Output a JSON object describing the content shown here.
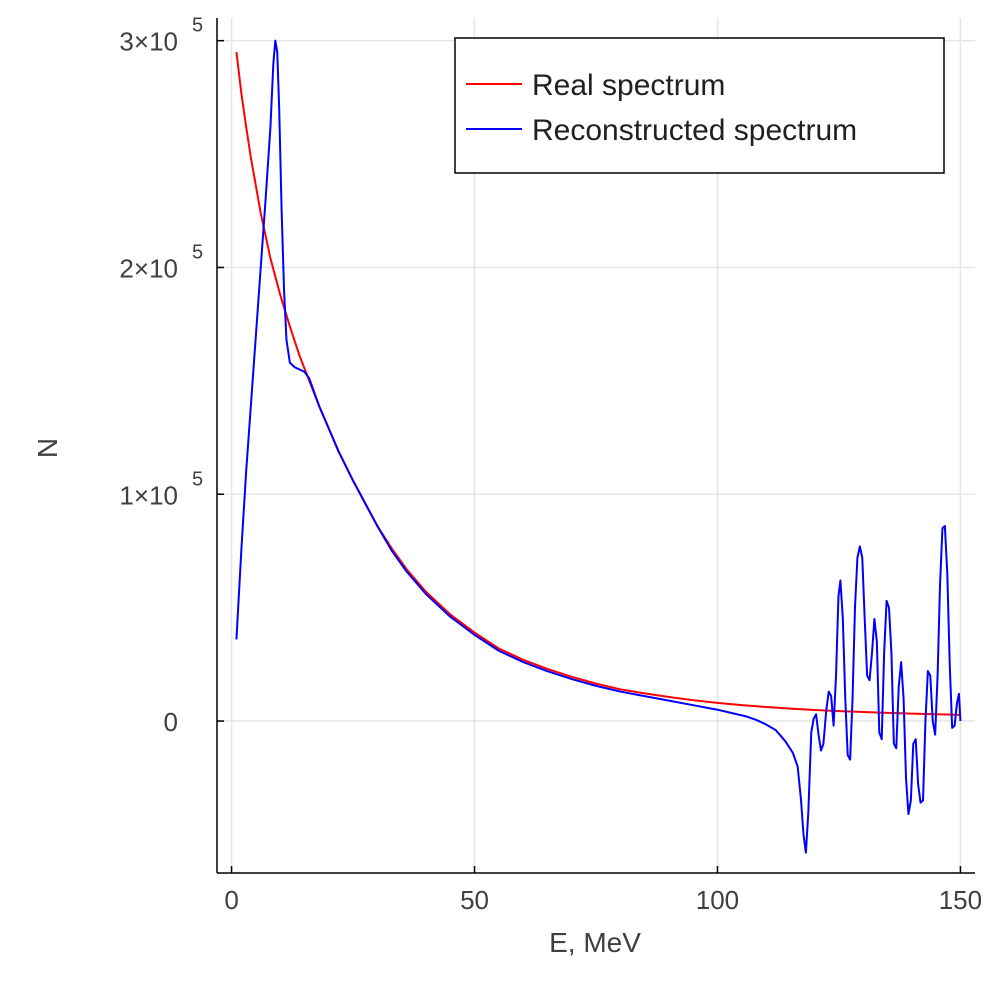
{
  "chart_data": {
    "type": "line",
    "title": "",
    "xlabel": "E, MeV",
    "ylabel": "N",
    "xlim": [
      -3,
      153
    ],
    "ylim": [
      -67000,
      310000
    ],
    "grid": true,
    "legend_position": "top-right",
    "x_ticks": [
      {
        "value": 0,
        "label": "0"
      },
      {
        "value": 50,
        "label": "50"
      },
      {
        "value": 100,
        "label": "100"
      },
      {
        "value": 150,
        "label": "150"
      }
    ],
    "y_ticks": [
      {
        "value": 0,
        "mantissa": "0",
        "exp": ""
      },
      {
        "value": 100000,
        "mantissa": "1×10",
        "exp": "5"
      },
      {
        "value": 200000,
        "mantissa": "2×10",
        "exp": "5"
      },
      {
        "value": 300000,
        "mantissa": "3×10",
        "exp": "5"
      }
    ],
    "series": [
      {
        "name": "Real spectrum",
        "color": "#ff0000",
        "points": [
          [
            1,
            295000
          ],
          [
            2,
            277000
          ],
          [
            3,
            262000
          ],
          [
            4,
            248000
          ],
          [
            5,
            236000
          ],
          [
            6,
            224000
          ],
          [
            8,
            204000
          ],
          [
            10,
            188000
          ],
          [
            12,
            174000
          ],
          [
            14,
            161000
          ],
          [
            16,
            150000
          ],
          [
            18,
            139000
          ],
          [
            20,
            129000
          ],
          [
            22,
            119000
          ],
          [
            25,
            106000
          ],
          [
            28,
            94000
          ],
          [
            30,
            86000
          ],
          [
            33,
            76000
          ],
          [
            36,
            67000
          ],
          [
            40,
            57000
          ],
          [
            45,
            47000
          ],
          [
            50,
            39000
          ],
          [
            55,
            32000
          ],
          [
            60,
            27000
          ],
          [
            65,
            23000
          ],
          [
            70,
            19500
          ],
          [
            75,
            16500
          ],
          [
            80,
            14000
          ],
          [
            85,
            12200
          ],
          [
            90,
            10600
          ],
          [
            95,
            9200
          ],
          [
            100,
            8000
          ],
          [
            105,
            7000
          ],
          [
            110,
            6200
          ],
          [
            115,
            5500
          ],
          [
            120,
            4900
          ],
          [
            125,
            4400
          ],
          [
            130,
            4000
          ],
          [
            135,
            3600
          ],
          [
            140,
            3300
          ],
          [
            145,
            3000
          ],
          [
            150,
            2700
          ]
        ]
      },
      {
        "name": "Reconstructed spectrum",
        "color": "#0000ff",
        "points": [
          [
            1,
            36000
          ],
          [
            2,
            75000
          ],
          [
            3,
            110000
          ],
          [
            4,
            140000
          ],
          [
            5,
            170000
          ],
          [
            6,
            200000
          ],
          [
            7,
            230000
          ],
          [
            8,
            262000
          ],
          [
            8.6,
            290000
          ],
          [
            9,
            300000
          ],
          [
            9.4,
            295000
          ],
          [
            9.8,
            270000
          ],
          [
            10.3,
            225000
          ],
          [
            10.8,
            190000
          ],
          [
            11.3,
            168000
          ],
          [
            12,
            158000
          ],
          [
            13,
            156000
          ],
          [
            14,
            155000
          ],
          [
            15,
            154000
          ],
          [
            16,
            151000
          ],
          [
            17,
            145000
          ],
          [
            18,
            139000
          ],
          [
            20,
            129000
          ],
          [
            22,
            119000
          ],
          [
            25,
            106000
          ],
          [
            28,
            94000
          ],
          [
            30,
            86000
          ],
          [
            33,
            75000
          ],
          [
            36,
            66000
          ],
          [
            40,
            56000
          ],
          [
            45,
            46000
          ],
          [
            50,
            38000
          ],
          [
            55,
            31000
          ],
          [
            60,
            26000
          ],
          [
            65,
            22000
          ],
          [
            70,
            18500
          ],
          [
            75,
            15500
          ],
          [
            80,
            13000
          ],
          [
            85,
            11000
          ],
          [
            90,
            9000
          ],
          [
            95,
            7000
          ],
          [
            100,
            5000
          ],
          [
            103,
            3500
          ],
          [
            106,
            2000
          ],
          [
            108,
            500
          ],
          [
            110,
            -1500
          ],
          [
            112,
            -4000
          ],
          [
            114,
            -9000
          ],
          [
            115.5,
            -14000
          ],
          [
            116.5,
            -20000
          ],
          [
            117.2,
            -35000
          ],
          [
            117.7,
            -50000
          ],
          [
            118.2,
            -58000
          ],
          [
            118.7,
            -40000
          ],
          [
            119.3,
            -5000
          ],
          [
            119.8,
            1000
          ],
          [
            120.3,
            3000
          ],
          [
            120.8,
            -6000
          ],
          [
            121.3,
            -13000
          ],
          [
            121.8,
            -10000
          ],
          [
            122.4,
            5000
          ],
          [
            122.9,
            13000
          ],
          [
            123.4,
            11000
          ],
          [
            123.9,
            -2000
          ],
          [
            124.4,
            20000
          ],
          [
            124.9,
            55000
          ],
          [
            125.3,
            62000
          ],
          [
            125.8,
            45000
          ],
          [
            126.3,
            10000
          ],
          [
            126.8,
            -15000
          ],
          [
            127.3,
            -17000
          ],
          [
            127.8,
            10000
          ],
          [
            128.3,
            50000
          ],
          [
            128.8,
            72000
          ],
          [
            129.3,
            77000
          ],
          [
            129.8,
            72000
          ],
          [
            130.3,
            45000
          ],
          [
            130.8,
            20000
          ],
          [
            131.3,
            18000
          ],
          [
            131.8,
            30000
          ],
          [
            132.3,
            45000
          ],
          [
            132.8,
            35000
          ],
          [
            133.3,
            -5000
          ],
          [
            133.8,
            -8000
          ],
          [
            134.3,
            30000
          ],
          [
            134.8,
            53000
          ],
          [
            135.3,
            50000
          ],
          [
            135.8,
            30000
          ],
          [
            136.3,
            -10000
          ],
          [
            136.8,
            -12000
          ],
          [
            137.3,
            15000
          ],
          [
            137.8,
            26000
          ],
          [
            138.3,
            10000
          ],
          [
            138.8,
            -25000
          ],
          [
            139.3,
            -41000
          ],
          [
            139.8,
            -35000
          ],
          [
            140.3,
            -10000
          ],
          [
            140.8,
            -8000
          ],
          [
            141.3,
            -28000
          ],
          [
            141.8,
            -36000
          ],
          [
            142.3,
            -35000
          ],
          [
            142.8,
            0
          ],
          [
            143.3,
            22000
          ],
          [
            143.8,
            20000
          ],
          [
            144.3,
            0
          ],
          [
            144.8,
            -6000
          ],
          [
            145.3,
            20000
          ],
          [
            145.8,
            60000
          ],
          [
            146.3,
            85000
          ],
          [
            146.8,
            86000
          ],
          [
            147.3,
            65000
          ],
          [
            147.8,
            25000
          ],
          [
            148.3,
            -3000
          ],
          [
            148.8,
            -2000
          ],
          [
            149.3,
            8000
          ],
          [
            149.7,
            12000
          ],
          [
            150,
            0
          ]
        ]
      }
    ]
  }
}
